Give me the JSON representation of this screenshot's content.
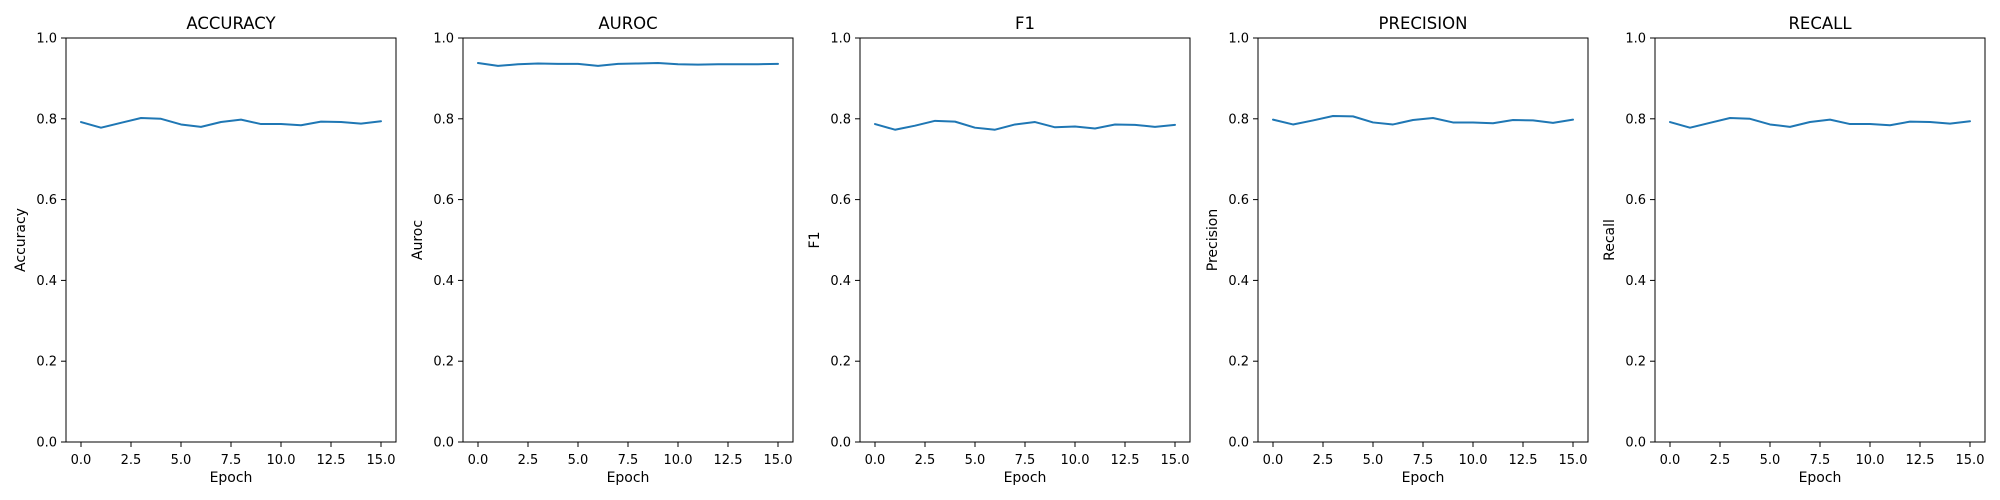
{
  "chart_data": [
    {
      "type": "line",
      "title": "ACCURACY",
      "xlabel": "Epoch",
      "ylabel": "Accuracy",
      "xlim": [
        -0.75,
        15.75
      ],
      "ylim": [
        0.0,
        1.0
      ],
      "xticks": [
        "0.0",
        "2.5",
        "5.0",
        "7.5",
        "10.0",
        "12.5",
        "15.0"
      ],
      "yticks": [
        "0.0",
        "0.2",
        "0.4",
        "0.6",
        "0.8",
        "1.0"
      ],
      "grid": false,
      "color": "#1f77b4",
      "x": [
        0,
        1,
        2,
        3,
        4,
        5,
        6,
        7,
        8,
        9,
        10,
        11,
        12,
        13,
        14,
        15
      ],
      "values": [
        0.792,
        0.778,
        0.79,
        0.802,
        0.8,
        0.786,
        0.78,
        0.792,
        0.798,
        0.787,
        0.787,
        0.784,
        0.793,
        0.792,
        0.788,
        0.794
      ]
    },
    {
      "type": "line",
      "title": "AUROC",
      "xlabel": "Epoch",
      "ylabel": "Auroc",
      "xlim": [
        -0.75,
        15.75
      ],
      "ylim": [
        0.0,
        1.0
      ],
      "xticks": [
        "0.0",
        "2.5",
        "5.0",
        "7.5",
        "10.0",
        "12.5",
        "15.0"
      ],
      "yticks": [
        "0.0",
        "0.2",
        "0.4",
        "0.6",
        "0.8",
        "1.0"
      ],
      "grid": false,
      "color": "#1f77b4",
      "x": [
        0,
        1,
        2,
        3,
        4,
        5,
        6,
        7,
        8,
        9,
        10,
        11,
        12,
        13,
        14,
        15
      ],
      "values": [
        0.938,
        0.931,
        0.935,
        0.937,
        0.936,
        0.936,
        0.931,
        0.936,
        0.937,
        0.938,
        0.935,
        0.934,
        0.935,
        0.935,
        0.935,
        0.936
      ]
    },
    {
      "type": "line",
      "title": "F1",
      "xlabel": "Epoch",
      "ylabel": "F1",
      "xlim": [
        -0.75,
        15.75
      ],
      "ylim": [
        0.0,
        1.0
      ],
      "xticks": [
        "0.0",
        "2.5",
        "5.0",
        "7.5",
        "10.0",
        "12.5",
        "15.0"
      ],
      "yticks": [
        "0.0",
        "0.2",
        "0.4",
        "0.6",
        "0.8",
        "1.0"
      ],
      "grid": false,
      "color": "#1f77b4",
      "x": [
        0,
        1,
        2,
        3,
        4,
        5,
        6,
        7,
        8,
        9,
        10,
        11,
        12,
        13,
        14,
        15
      ],
      "values": [
        0.787,
        0.773,
        0.783,
        0.795,
        0.793,
        0.778,
        0.773,
        0.786,
        0.792,
        0.779,
        0.781,
        0.776,
        0.786,
        0.785,
        0.78,
        0.785
      ]
    },
    {
      "type": "line",
      "title": "PRECISION",
      "xlabel": "Epoch",
      "ylabel": "Precision",
      "xlim": [
        -0.75,
        15.75
      ],
      "ylim": [
        0.0,
        1.0
      ],
      "xticks": [
        "0.0",
        "2.5",
        "5.0",
        "7.5",
        "10.0",
        "12.5",
        "15.0"
      ],
      "yticks": [
        "0.0",
        "0.2",
        "0.4",
        "0.6",
        "0.8",
        "1.0"
      ],
      "grid": false,
      "color": "#1f77b4",
      "x": [
        0,
        1,
        2,
        3,
        4,
        5,
        6,
        7,
        8,
        9,
        10,
        11,
        12,
        13,
        14,
        15
      ],
      "values": [
        0.798,
        0.786,
        0.796,
        0.807,
        0.806,
        0.791,
        0.786,
        0.797,
        0.802,
        0.791,
        0.791,
        0.789,
        0.797,
        0.796,
        0.79,
        0.798
      ]
    },
    {
      "type": "line",
      "title": "RECALL",
      "xlabel": "Epoch",
      "ylabel": "Recall",
      "xlim": [
        -0.75,
        15.75
      ],
      "ylim": [
        0.0,
        1.0
      ],
      "xticks": [
        "0.0",
        "2.5",
        "5.0",
        "7.5",
        "10.0",
        "12.5",
        "15.0"
      ],
      "yticks": [
        "0.0",
        "0.2",
        "0.4",
        "0.6",
        "0.8",
        "1.0"
      ],
      "grid": false,
      "color": "#1f77b4",
      "x": [
        0,
        1,
        2,
        3,
        4,
        5,
        6,
        7,
        8,
        9,
        10,
        11,
        12,
        13,
        14,
        15
      ],
      "values": [
        0.792,
        0.778,
        0.79,
        0.802,
        0.8,
        0.786,
        0.78,
        0.792,
        0.798,
        0.787,
        0.787,
        0.784,
        0.793,
        0.792,
        0.788,
        0.794
      ]
    }
  ]
}
